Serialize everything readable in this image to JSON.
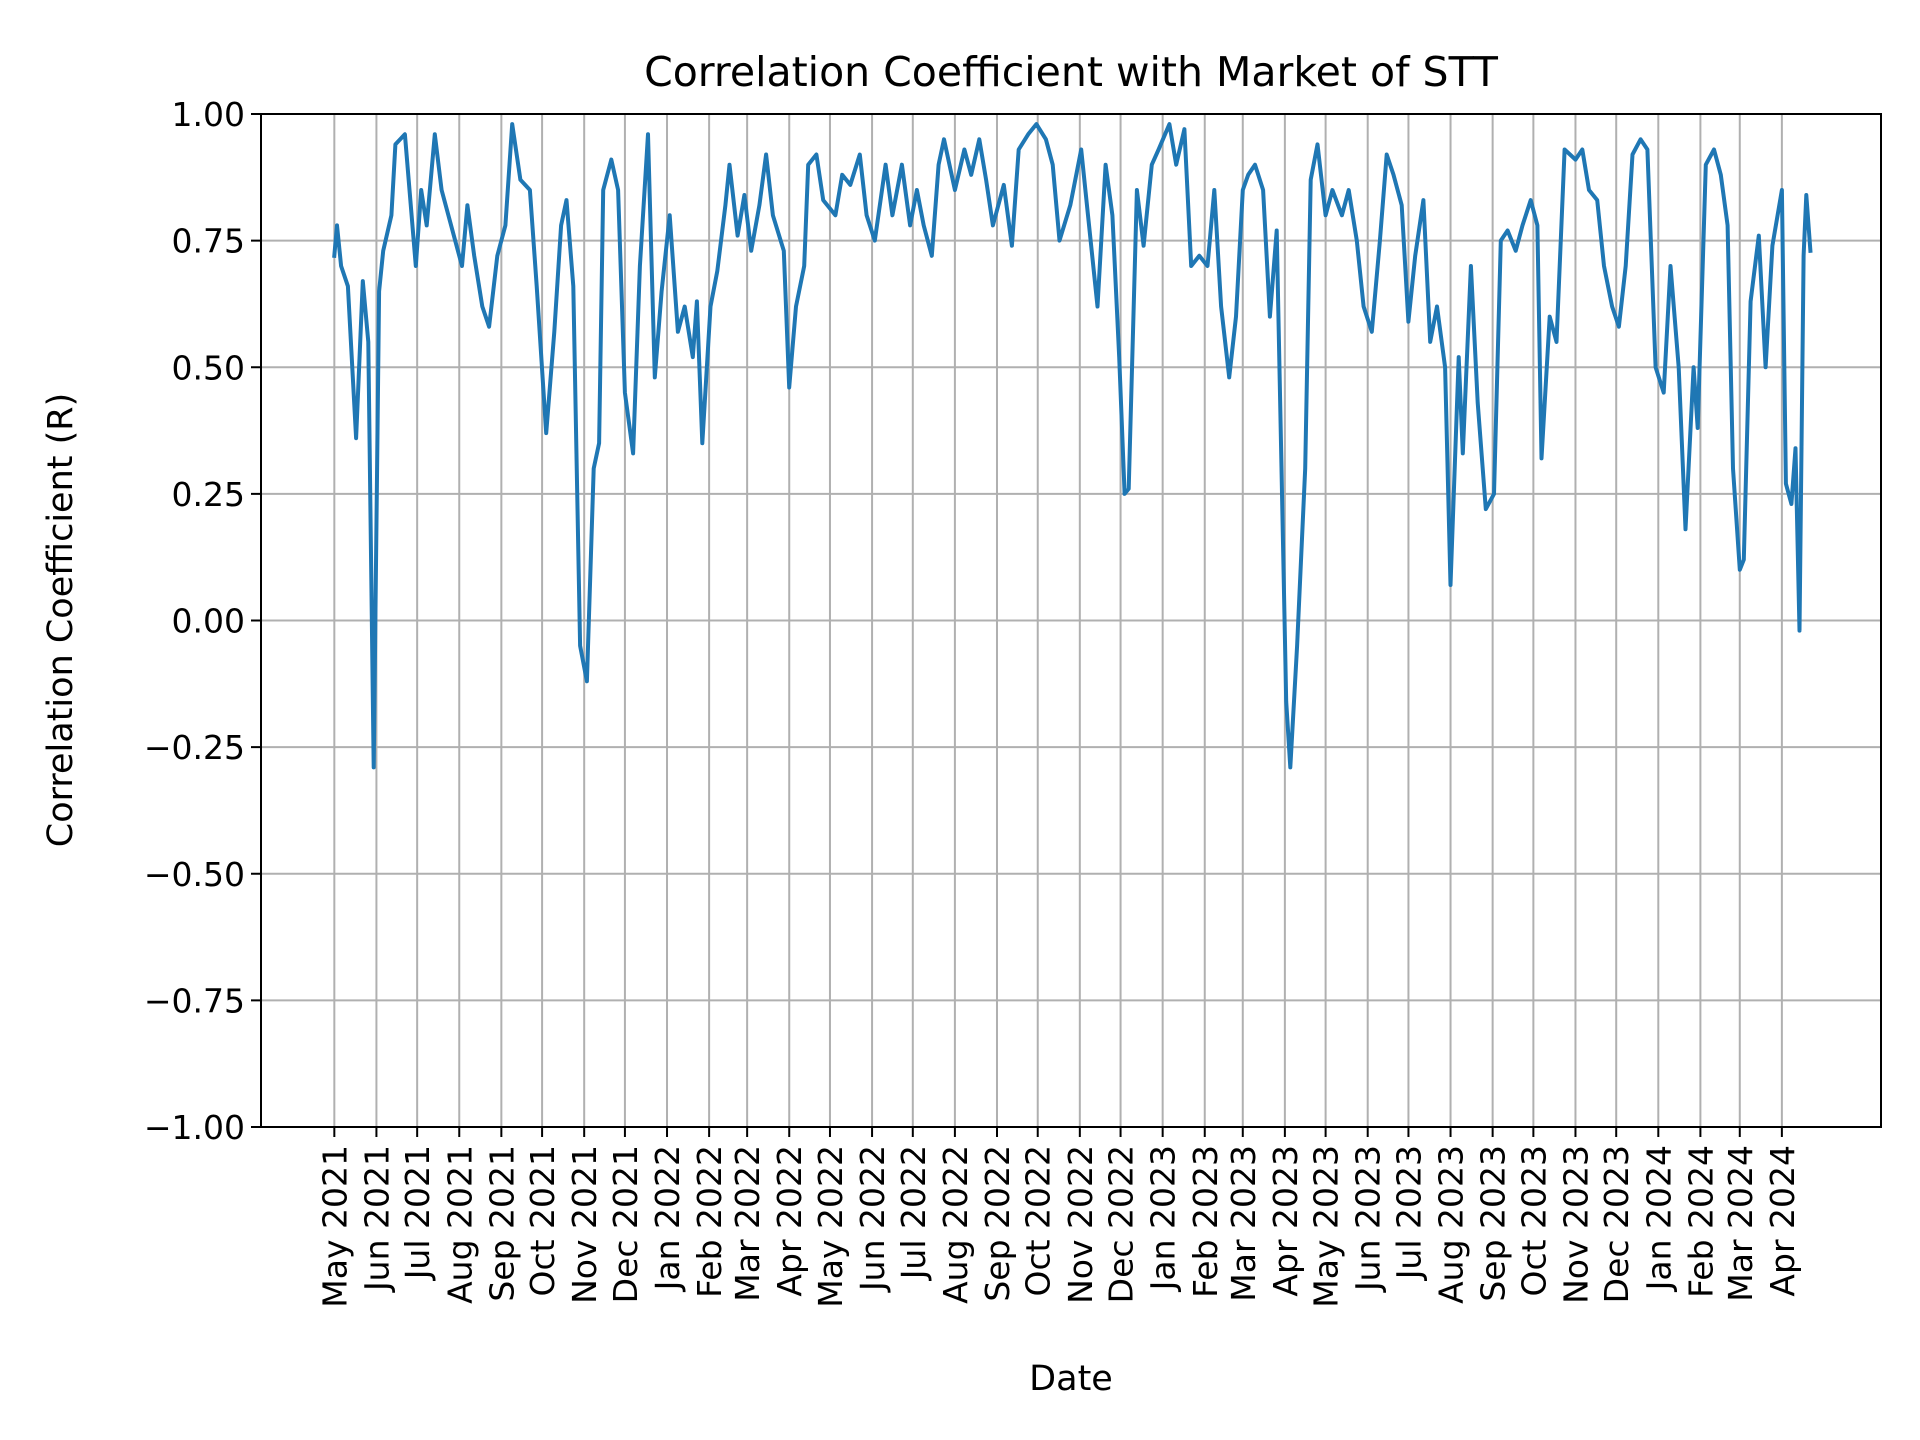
{
  "chart_data": {
    "type": "line",
    "title": "Correlation Coefficient with Market of STT",
    "xlabel": "Date",
    "ylabel": "Correlation Coefficient (R)",
    "xlim": [
      "2021-03-08",
      "2024-06-13"
    ],
    "ylim": [
      -1.0,
      1.0
    ],
    "yticks": [
      -1.0,
      -0.75,
      -0.5,
      -0.25,
      0.0,
      0.25,
      0.5,
      0.75,
      1.0
    ],
    "ytick_labels": [
      "−1.00",
      "−0.75",
      "−0.50",
      "−0.25",
      "0.00",
      "0.25",
      "0.50",
      "0.75",
      "1.00"
    ],
    "xticks": [
      "2021-05-01",
      "2021-06-01",
      "2021-07-01",
      "2021-08-01",
      "2021-09-01",
      "2021-10-01",
      "2021-11-01",
      "2021-12-01",
      "2022-01-01",
      "2022-02-01",
      "2022-03-01",
      "2022-04-01",
      "2022-05-01",
      "2022-06-01",
      "2022-07-01",
      "2022-08-01",
      "2022-09-01",
      "2022-10-01",
      "2022-11-01",
      "2022-12-01",
      "2023-01-01",
      "2023-02-01",
      "2023-03-01",
      "2023-04-01",
      "2023-05-01",
      "2023-06-01",
      "2023-07-01",
      "2023-08-01",
      "2023-09-01",
      "2023-10-01",
      "2023-11-01",
      "2023-12-01",
      "2024-01-01",
      "2024-02-01",
      "2024-03-01",
      "2024-04-01"
    ],
    "xtick_labels": [
      "May 2021",
      "Jun 2021",
      "Jul 2021",
      "Aug 2021",
      "Sep 2021",
      "Oct 2021",
      "Nov 2021",
      "Dec 2021",
      "Jan 2022",
      "Feb 2022",
      "Mar 2022",
      "Apr 2022",
      "May 2022",
      "Jun 2022",
      "Jul 2022",
      "Aug 2022",
      "Sep 2022",
      "Oct 2022",
      "Nov 2022",
      "Dec 2022",
      "Jan 2023",
      "Feb 2023",
      "Mar 2023",
      "Apr 2023",
      "May 2023",
      "Jun 2023",
      "Jul 2023",
      "Aug 2023",
      "Sep 2023",
      "Oct 2023",
      "Nov 2023",
      "Dec 2023",
      "Jan 2024",
      "Feb 2024",
      "Mar 2024",
      "Apr 2024"
    ],
    "grid": true,
    "line_color": "#1f77b4",
    "series": [
      {
        "x": [
          "2021-05-01",
          "2021-05-03",
          "2021-05-06",
          "2021-05-11",
          "2021-05-17",
          "2021-05-22",
          "2021-05-26",
          "2021-05-30",
          "2021-06-03",
          "2021-06-06",
          "2021-06-12",
          "2021-06-15",
          "2021-06-22",
          "2021-06-30",
          "2021-07-04",
          "2021-07-08",
          "2021-07-14",
          "2021-07-19",
          "2021-07-26",
          "2021-08-03",
          "2021-08-07",
          "2021-08-12",
          "2021-08-18",
          "2021-08-23",
          "2021-08-29",
          "2021-09-04",
          "2021-09-09",
          "2021-09-15",
          "2021-09-22",
          "2021-09-27",
          "2021-10-04",
          "2021-10-10",
          "2021-10-15",
          "2021-10-19",
          "2021-10-24",
          "2021-10-29",
          "2021-11-03",
          "2021-11-08",
          "2021-11-12",
          "2021-11-15",
          "2021-11-21",
          "2021-11-26",
          "2021-12-01",
          "2021-12-07",
          "2021-12-12",
          "2021-12-18",
          "2021-12-23",
          "2021-12-28",
          "2022-01-03",
          "2022-01-09",
          "2022-01-14",
          "2022-01-20",
          "2022-01-23",
          "2022-01-27",
          "2022-02-02",
          "2022-02-07",
          "2022-02-13",
          "2022-02-16",
          "2022-02-22",
          "2022-02-27",
          "2022-03-04",
          "2022-03-10",
          "2022-03-15",
          "2022-03-20",
          "2022-03-28",
          "2022-04-01",
          "2022-04-06",
          "2022-04-12",
          "2022-04-15",
          "2022-04-21",
          "2022-04-26",
          "2022-05-05",
          "2022-05-10",
          "2022-05-16",
          "2022-05-23",
          "2022-05-28",
          "2022-06-03",
          "2022-06-11",
          "2022-06-16",
          "2022-06-23",
          "2022-06-29",
          "2022-07-04",
          "2022-07-09",
          "2022-07-15",
          "2022-07-20",
          "2022-07-24",
          "2022-08-01",
          "2022-08-08",
          "2022-08-13",
          "2022-08-19",
          "2022-08-24",
          "2022-08-29",
          "2022-09-06",
          "2022-09-12",
          "2022-09-17",
          "2022-09-24",
          "2022-09-30",
          "2022-10-07",
          "2022-10-12",
          "2022-10-17",
          "2022-10-25",
          "2022-11-02",
          "2022-11-07",
          "2022-11-14",
          "2022-11-20",
          "2022-11-25",
          "2022-11-30",
          "2022-12-04",
          "2022-12-07",
          "2022-12-13",
          "2022-12-18",
          "2022-12-24",
          "2022-12-29",
          "2023-01-06",
          "2023-01-11",
          "2023-01-17",
          "2023-01-22",
          "2023-01-28",
          "2023-02-03",
          "2023-02-08",
          "2023-02-13",
          "2023-02-19",
          "2023-02-24",
          "2023-03-01",
          "2023-03-05",
          "2023-03-10",
          "2023-03-16",
          "2023-03-21",
          "2023-03-26",
          "2023-04-02",
          "2023-04-05",
          "2023-04-10",
          "2023-04-16",
          "2023-04-20",
          "2023-04-25",
          "2023-05-01",
          "2023-05-06",
          "2023-05-13",
          "2023-05-18",
          "2023-05-24",
          "2023-05-29",
          "2023-06-04",
          "2023-06-10",
          "2023-06-15",
          "2023-06-20",
          "2023-06-26",
          "2023-07-01",
          "2023-07-06",
          "2023-07-12",
          "2023-07-17",
          "2023-07-22",
          "2023-07-28",
          "2023-08-01",
          "2023-08-07",
          "2023-08-10",
          "2023-08-16",
          "2023-08-21",
          "2023-08-27",
          "2023-09-02",
          "2023-09-07",
          "2023-09-12",
          "2023-09-18",
          "2023-09-23",
          "2023-09-29",
          "2023-10-04",
          "2023-10-07",
          "2023-10-13",
          "2023-10-18",
          "2023-10-24",
          "2023-11-01",
          "2023-11-06",
          "2023-11-11",
          "2023-11-17",
          "2023-11-22",
          "2023-11-28",
          "2023-12-03",
          "2023-12-08",
          "2023-12-13",
          "2023-12-19",
          "2023-12-24",
          "2023-12-30",
          "2024-01-05",
          "2024-01-10",
          "2024-01-16",
          "2024-01-21",
          "2024-01-27",
          "2024-01-30",
          "2024-02-05",
          "2024-02-11",
          "2024-02-16",
          "2024-02-21",
          "2024-02-25",
          "2024-03-01",
          "2024-03-04",
          "2024-03-09",
          "2024-03-15",
          "2024-03-20",
          "2024-03-25",
          "2024-04-01",
          "2024-04-04",
          "2024-04-08",
          "2024-04-11",
          "2024-04-14",
          "2024-04-17",
          "2024-04-19",
          "2024-04-22"
        ],
        "y": [
          0.72,
          0.78,
          0.7,
          0.66,
          0.36,
          0.67,
          0.55,
          -0.29,
          0.65,
          0.73,
          0.8,
          0.94,
          0.96,
          0.7,
          0.85,
          0.78,
          0.96,
          0.85,
          0.78,
          0.7,
          0.82,
          0.72,
          0.62,
          0.58,
          0.72,
          0.78,
          0.98,
          0.87,
          0.85,
          0.66,
          0.37,
          0.57,
          0.78,
          0.83,
          0.66,
          -0.05,
          -0.12,
          0.3,
          0.35,
          0.85,
          0.91,
          0.85,
          0.45,
          0.33,
          0.7,
          0.96,
          0.48,
          0.65,
          0.8,
          0.57,
          0.62,
          0.52,
          0.63,
          0.35,
          0.62,
          0.69,
          0.82,
          0.9,
          0.76,
          0.84,
          0.73,
          0.82,
          0.92,
          0.8,
          0.73,
          0.46,
          0.62,
          0.7,
          0.9,
          0.92,
          0.83,
          0.8,
          0.88,
          0.86,
          0.92,
          0.8,
          0.75,
          0.9,
          0.8,
          0.9,
          0.78,
          0.85,
          0.78,
          0.72,
          0.9,
          0.95,
          0.85,
          0.93,
          0.88,
          0.95,
          0.87,
          0.78,
          0.86,
          0.74,
          0.93,
          0.96,
          0.98,
          0.95,
          0.9,
          0.75,
          0.82,
          0.93,
          0.8,
          0.62,
          0.9,
          0.8,
          0.52,
          0.25,
          0.26,
          0.85,
          0.74,
          0.9,
          0.93,
          0.98,
          0.9,
          0.97,
          0.7,
          0.72,
          0.7,
          0.85,
          0.62,
          0.48,
          0.6,
          0.85,
          0.88,
          0.9,
          0.85,
          0.6,
          0.77,
          -0.16,
          -0.29,
          -0.05,
          0.3,
          0.87,
          0.94,
          0.8,
          0.85,
          0.8,
          0.85,
          0.75,
          0.62,
          0.57,
          0.75,
          0.92,
          0.88,
          0.82,
          0.59,
          0.72,
          0.83,
          0.55,
          0.62,
          0.5,
          0.07,
          0.52,
          0.33,
          0.7,
          0.43,
          0.22,
          0.25,
          0.75,
          0.77,
          0.73,
          0.78,
          0.83,
          0.78,
          0.32,
          0.6,
          0.55,
          0.93,
          0.91,
          0.93,
          0.85,
          0.83,
          0.7,
          0.62,
          0.58,
          0.7,
          0.92,
          0.95,
          0.93,
          0.5,
          0.45,
          0.7,
          0.5,
          0.18,
          0.5,
          0.38,
          0.9,
          0.93,
          0.88,
          0.78,
          0.3,
          0.1,
          0.12,
          0.63,
          0.76,
          0.5,
          0.74,
          0.85,
          0.27,
          0.23,
          0.34,
          -0.02,
          0.72,
          0.84,
          0.73
        ]
      }
    ]
  }
}
